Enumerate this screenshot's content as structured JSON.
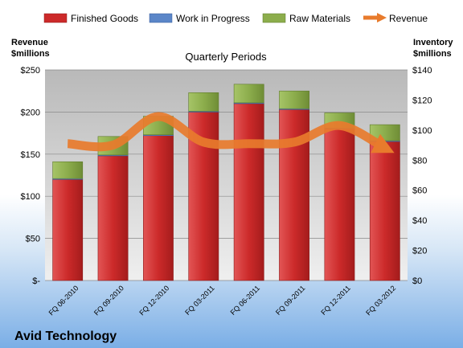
{
  "legend": [
    "Finished Goods",
    "Work in Progress",
    "Raw Materials",
    "Revenue"
  ],
  "left_axis_title": [
    "Revenue",
    "$millions"
  ],
  "right_axis_title": [
    "Inventory",
    "$millions"
  ],
  "subtitle": "Quarterly Periods",
  "company": "Avid Technology",
  "colors": {
    "finished_goods": "#cc2a2a",
    "work_in_progress": "#5b86c8",
    "raw_materials": "#8cad4c",
    "revenue": "#e87b2c",
    "plot_top": "#b9b9b9",
    "plot_bottom": "#efefef"
  },
  "chart_data": {
    "type": "bar",
    "stacked": true,
    "categories": [
      "FQ 06-2010",
      "FQ 09-2010",
      "FQ 12-2010",
      "FQ 03-2011",
      "FQ 06-2011",
      "FQ 09-2011",
      "FQ 12-2011",
      "FQ 03-2012"
    ],
    "series": [
      {
        "name": "Finished Goods",
        "axis": "left",
        "values": [
          120,
          148,
          172,
          200,
          210,
          203,
          180,
          165
        ]
      },
      {
        "name": "Work in Progress",
        "axis": "left",
        "values": [
          1,
          1,
          1,
          1,
          1,
          1,
          1,
          1
        ]
      },
      {
        "name": "Raw Materials",
        "axis": "left",
        "values": [
          20,
          22,
          22,
          22,
          22,
          21,
          18,
          19
        ]
      },
      {
        "name": "Revenue",
        "type": "line",
        "axis": "right",
        "values": [
          91,
          90,
          109,
          92,
          91,
          92,
          103,
          88
        ]
      }
    ],
    "left_axis": {
      "ylim": [
        0,
        250
      ],
      "ticks": [
        "$-",
        "$50",
        "$100",
        "$150",
        "$200",
        "$250"
      ]
    },
    "right_axis": {
      "ylim": [
        0,
        140
      ],
      "ticks": [
        "$0",
        "$20",
        "$40",
        "$60",
        "$80",
        "$100",
        "$120",
        "$140"
      ]
    },
    "grid": true,
    "legend_position": "top"
  }
}
